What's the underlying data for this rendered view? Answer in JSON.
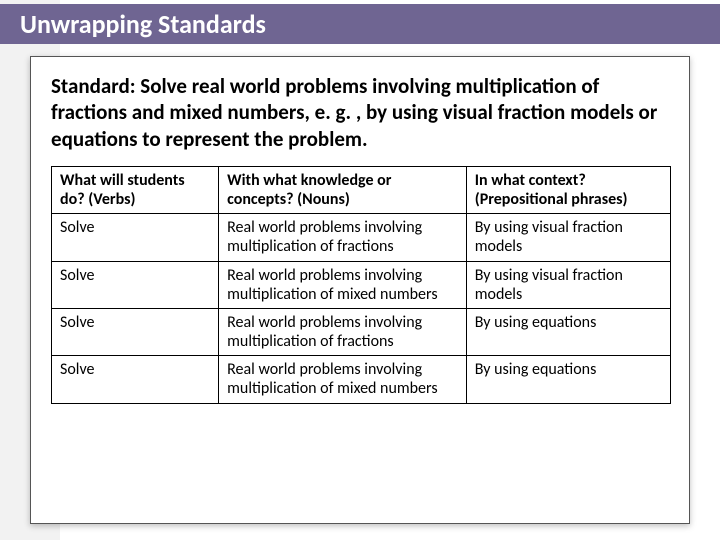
{
  "header": {
    "title": "Unwrapping Standards"
  },
  "standard": "Standard: Solve real world problems involving multiplication of fractions and mixed numbers, e. g. , by using visual fraction models or equations to represent the problem.",
  "table": {
    "columns": [
      "What will students do? (Verbs)",
      "With what knowledge or concepts? (Nouns)",
      "In what context? (Prepositional phrases)"
    ],
    "rows": [
      [
        "Solve",
        "Real world problems involving multiplication of fractions",
        "By using visual fraction models"
      ],
      [
        "Solve",
        "Real world problems involving multiplication of mixed numbers",
        "By using visual fraction models"
      ],
      [
        "Solve",
        "Real world problems involving multiplication of fractions",
        "By using equations"
      ],
      [
        "Solve",
        "Real world problems involving multiplication of mixed numbers",
        "By using equations"
      ]
    ]
  },
  "colors": {
    "header_bg": "#6f6592",
    "header_text": "#ffffff",
    "page_bg": "#ffffff",
    "accent_bg": "#f2f2f2",
    "border": "#000000"
  }
}
